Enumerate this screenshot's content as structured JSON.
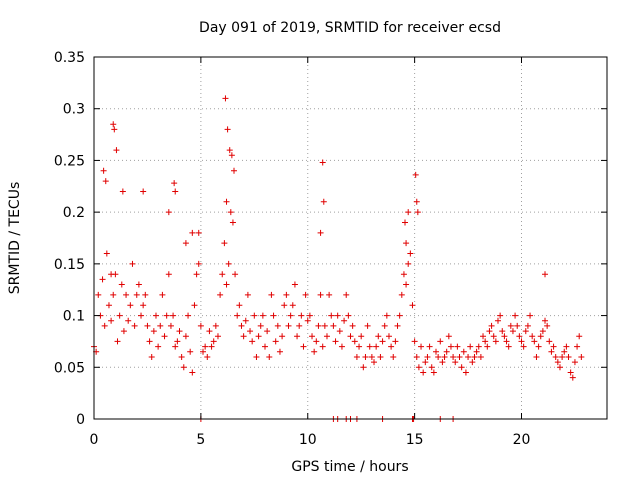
{
  "chart_data": {
    "type": "scatter",
    "title": "Day 091 of 2019, SRMTID for receiver ecsd",
    "xlabel": "GPS time / hours",
    "ylabel": "SRMTID / TECUs",
    "xlim": [
      0,
      24
    ],
    "ylim": [
      0,
      0.35
    ],
    "x_ticks": [
      0,
      5,
      10,
      15,
      20
    ],
    "x_tick_labels": [
      "0",
      "5",
      "10",
      "15",
      "20"
    ],
    "y_ticks": [
      0,
      0.05,
      0.1,
      0.15,
      0.2,
      0.25,
      0.3,
      0.35
    ],
    "y_tick_labels": [
      "0",
      "0.05",
      "0.1",
      "0.15",
      "0.2",
      "0.25",
      "0.3",
      "0.35"
    ],
    "grid": true,
    "marker": "plus",
    "color": "#e00000",
    "series": [
      {
        "name": "SRMTID",
        "x": [
          0.0,
          0.1,
          0.2,
          0.3,
          0.4,
          0.5,
          0.6,
          0.7,
          0.8,
          0.9,
          1.0,
          1.1,
          1.2,
          1.3,
          1.4,
          1.5,
          1.6,
          1.7,
          1.8,
          1.9,
          2.0,
          2.1,
          2.2,
          2.3,
          2.4,
          2.5,
          2.6,
          2.7,
          2.8,
          2.9,
          3.0,
          3.1,
          3.2,
          3.3,
          3.4,
          3.5,
          3.6,
          3.7,
          3.8,
          3.9,
          4.0,
          4.1,
          4.2,
          4.3,
          4.4,
          4.5,
          4.6,
          4.7,
          4.8,
          4.9,
          5.0,
          5.1,
          5.2,
          5.3,
          5.4,
          5.5,
          5.6,
          5.7,
          5.8,
          5.9,
          6.0,
          6.1,
          6.2,
          6.3,
          6.4,
          6.5,
          6.6,
          6.7,
          6.8,
          6.9,
          7.0,
          7.1,
          7.2,
          7.3,
          7.4,
          7.5,
          7.6,
          7.7,
          7.8,
          7.9,
          8.0,
          8.1,
          8.2,
          8.3,
          8.4,
          8.5,
          8.6,
          8.7,
          8.8,
          8.9,
          9.0,
          9.1,
          9.2,
          9.3,
          9.4,
          9.5,
          9.6,
          9.7,
          9.8,
          9.9,
          10.0,
          10.1,
          10.2,
          10.3,
          10.4,
          10.5,
          10.6,
          10.7,
          10.8,
          10.9,
          11.0,
          11.1,
          11.2,
          11.3,
          11.4,
          11.5,
          11.6,
          11.7,
          11.8,
          11.9,
          12.0,
          12.1,
          12.2,
          12.3,
          12.4,
          12.5,
          12.6,
          12.7,
          12.8,
          12.9,
          13.0,
          13.1,
          13.2,
          13.3,
          13.4,
          13.5,
          13.6,
          13.7,
          13.8,
          13.9,
          14.0,
          14.1,
          14.2,
          14.3,
          14.4,
          14.5,
          14.6,
          14.7,
          14.8,
          14.9,
          15.0,
          15.1,
          15.2,
          15.3,
          15.4,
          15.5,
          15.6,
          15.7,
          15.8,
          15.9,
          16.0,
          16.1,
          16.2,
          16.3,
          16.4,
          16.5,
          16.6,
          16.7,
          16.8,
          16.9,
          17.0,
          17.1,
          17.2,
          17.3,
          17.4,
          17.5,
          17.6,
          17.7,
          17.8,
          17.9,
          18.0,
          18.1,
          18.2,
          18.3,
          18.4,
          18.5,
          18.6,
          18.7,
          18.8,
          18.9,
          19.0,
          19.1,
          19.2,
          19.3,
          19.4,
          19.5,
          19.6,
          19.7,
          19.8,
          19.9,
          20.0,
          20.1,
          20.2,
          20.3,
          20.4,
          20.5,
          20.6,
          20.7,
          20.8,
          20.9,
          21.0,
          21.1,
          21.2,
          21.3,
          21.4,
          21.5,
          21.6,
          21.7,
          21.8,
          21.9,
          22.0,
          22.1,
          22.2,
          22.3,
          22.4,
          22.5,
          22.6,
          22.7,
          22.8,
          0.45,
          0.55,
          0.9,
          0.95,
          1.05,
          1.35,
          2.3,
          3.75,
          3.8,
          4.3,
          4.9,
          6.15,
          6.25,
          6.35,
          6.45,
          6.55,
          10.6,
          10.7,
          10.75,
          14.55,
          14.6,
          14.7,
          15.05,
          15.1,
          15.15,
          21.1,
          0.8,
          3.5,
          4.6,
          6.2,
          5.0,
          11.2,
          11.4,
          11.8,
          12.0,
          12.3,
          13.5,
          14.9,
          14.95,
          16.2,
          16.8
        ],
        "values": [
          0.07,
          0.065,
          0.12,
          0.1,
          0.135,
          0.09,
          0.16,
          0.11,
          0.095,
          0.12,
          0.14,
          0.075,
          0.1,
          0.13,
          0.085,
          0.12,
          0.095,
          0.11,
          0.15,
          0.09,
          0.12,
          0.13,
          0.1,
          0.11,
          0.12,
          0.09,
          0.075,
          0.06,
          0.085,
          0.1,
          0.07,
          0.09,
          0.12,
          0.08,
          0.1,
          0.14,
          0.09,
          0.1,
          0.07,
          0.075,
          0.085,
          0.06,
          0.05,
          0.08,
          0.1,
          0.065,
          0.045,
          0.11,
          0.14,
          0.15,
          0.09,
          0.065,
          0.07,
          0.06,
          0.085,
          0.07,
          0.075,
          0.09,
          0.08,
          0.12,
          0.14,
          0.17,
          0.13,
          0.15,
          0.2,
          0.19,
          0.14,
          0.1,
          0.11,
          0.09,
          0.08,
          0.095,
          0.12,
          0.085,
          0.075,
          0.1,
          0.06,
          0.08,
          0.09,
          0.1,
          0.07,
          0.085,
          0.06,
          0.12,
          0.1,
          0.075,
          0.09,
          0.065,
          0.08,
          0.11,
          0.12,
          0.09,
          0.1,
          0.11,
          0.13,
          0.08,
          0.09,
          0.1,
          0.07,
          0.12,
          0.095,
          0.1,
          0.08,
          0.065,
          0.075,
          0.09,
          0.12,
          0.07,
          0.09,
          0.08,
          0.12,
          0.1,
          0.09,
          0.075,
          0.1,
          0.085,
          0.07,
          0.095,
          0.12,
          0.1,
          0.08,
          0.09,
          0.075,
          0.06,
          0.07,
          0.08,
          0.05,
          0.06,
          0.09,
          0.07,
          0.06,
          0.055,
          0.07,
          0.08,
          0.06,
          0.075,
          0.09,
          0.1,
          0.08,
          0.07,
          0.06,
          0.075,
          0.09,
          0.1,
          0.12,
          0.14,
          0.13,
          0.15,
          0.16,
          0.11,
          0.075,
          0.06,
          0.05,
          0.07,
          0.045,
          0.055,
          0.06,
          0.07,
          0.05,
          0.045,
          0.065,
          0.06,
          0.075,
          0.055,
          0.06,
          0.065,
          0.08,
          0.07,
          0.06,
          0.055,
          0.07,
          0.06,
          0.05,
          0.065,
          0.045,
          0.06,
          0.07,
          0.055,
          0.06,
          0.065,
          0.07,
          0.06,
          0.08,
          0.075,
          0.07,
          0.085,
          0.09,
          0.08,
          0.075,
          0.095,
          0.1,
          0.085,
          0.08,
          0.075,
          0.07,
          0.09,
          0.085,
          0.1,
          0.09,
          0.08,
          0.075,
          0.07,
          0.085,
          0.09,
          0.1,
          0.08,
          0.075,
          0.06,
          0.07,
          0.08,
          0.085,
          0.095,
          0.09,
          0.075,
          0.065,
          0.07,
          0.06,
          0.055,
          0.05,
          0.06,
          0.065,
          0.07,
          0.06,
          0.045,
          0.04,
          0.055,
          0.07,
          0.08,
          0.06,
          0.24,
          0.23,
          0.285,
          0.28,
          0.26,
          0.22,
          0.22,
          0.228,
          0.22,
          0.17,
          0.18,
          0.31,
          0.28,
          0.26,
          0.255,
          0.24,
          0.18,
          0.248,
          0.21,
          0.19,
          0.17,
          0.2,
          0.236,
          0.21,
          0.2,
          0.14,
          0.14,
          0.2,
          0.18,
          0.21,
          0.0,
          0.0,
          0.0,
          0.0,
          0.0,
          0.0,
          0.0,
          0.0,
          0.0,
          0.0,
          0.0
        ]
      }
    ]
  }
}
